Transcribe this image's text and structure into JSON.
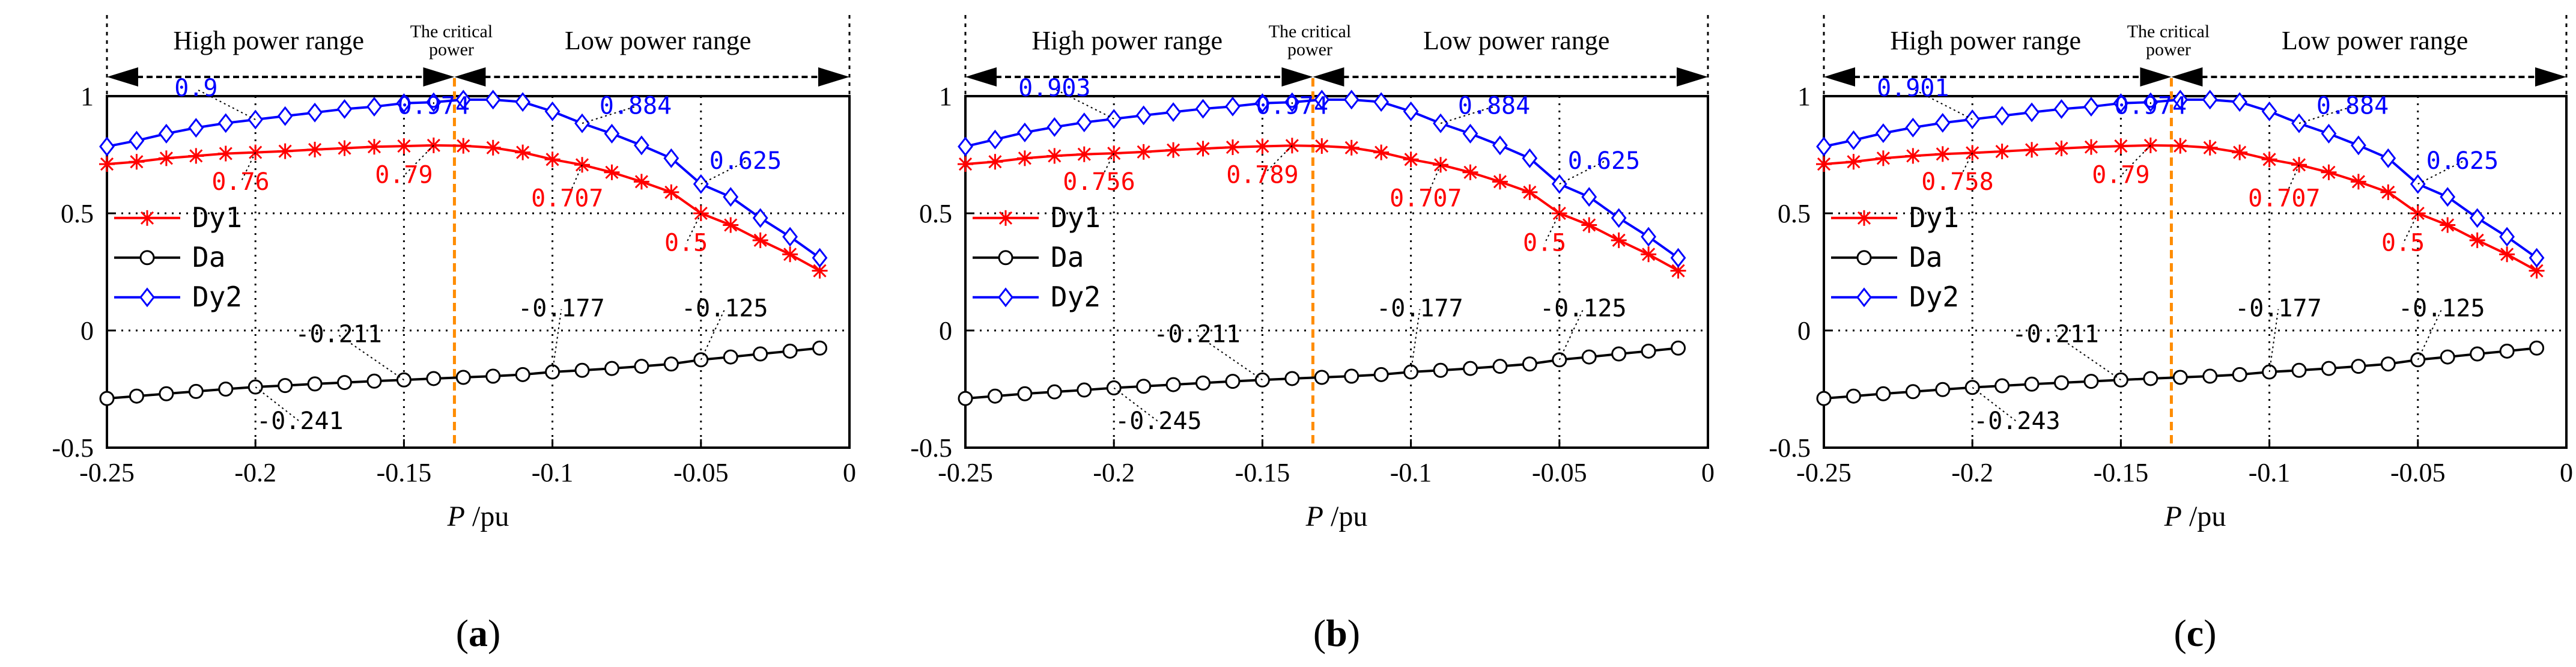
{
  "figure": {
    "panels": [
      "a",
      "b",
      "c"
    ],
    "range_labels": {
      "high": "High power range",
      "critical_line1": "The critical",
      "critical_line2": "power",
      "low": "Low power range"
    },
    "xaxis_label_italic": "P",
    "xaxis_label_unit": " /pu",
    "colors": {
      "Dy1": "#ff0000",
      "Da": "#000000",
      "Dy2": "#0000ff",
      "critical": "#ff8c00"
    }
  },
  "chart_data": [
    {
      "type": "line",
      "panel_label": "a",
      "x": [
        -0.25,
        -0.24,
        -0.23,
        -0.22,
        -0.21,
        -0.2,
        -0.19,
        -0.18,
        -0.17,
        -0.16,
        -0.15,
        -0.14,
        -0.13,
        -0.12,
        -0.11,
        -0.1,
        -0.09,
        -0.08,
        -0.07,
        -0.06,
        -0.05,
        -0.04,
        -0.03,
        -0.02,
        -0.01
      ],
      "series": [
        {
          "name": "Dy1",
          "values": [
            0.71,
            0.72,
            0.735,
            0.745,
            0.755,
            0.76,
            0.765,
            0.772,
            0.778,
            0.784,
            0.787,
            0.79,
            0.788,
            0.78,
            0.76,
            0.73,
            0.707,
            0.675,
            0.635,
            0.59,
            0.5,
            0.45,
            0.385,
            0.325,
            0.255
          ]
        },
        {
          "name": "Da",
          "values": [
            -0.29,
            -0.28,
            -0.27,
            -0.26,
            -0.25,
            -0.241,
            -0.235,
            -0.228,
            -0.222,
            -0.216,
            -0.211,
            -0.205,
            -0.2,
            -0.195,
            -0.188,
            -0.177,
            -0.17,
            -0.162,
            -0.153,
            -0.143,
            -0.125,
            -0.113,
            -0.1,
            -0.088,
            -0.075
          ]
        },
        {
          "name": "Dy2",
          "values": [
            0.785,
            0.81,
            0.84,
            0.865,
            0.885,
            0.9,
            0.915,
            0.93,
            0.945,
            0.955,
            0.97,
            0.974,
            0.985,
            0.985,
            0.975,
            0.935,
            0.884,
            0.84,
            0.79,
            0.735,
            0.625,
            0.57,
            0.48,
            0.4,
            0.31
          ]
        }
      ],
      "labels": [
        {
          "text": "0.9",
          "x": -0.2,
          "y": 0.9,
          "series": "Dy2"
        },
        {
          "text": "0.974",
          "x": -0.14,
          "y": 0.974,
          "series": "Dy2"
        },
        {
          "text": "0.884",
          "x": -0.09,
          "y": 0.884,
          "series": "Dy2"
        },
        {
          "text": "0.625",
          "x": -0.05,
          "y": 0.625,
          "series": "Dy2"
        },
        {
          "text": "0.76",
          "x": -0.2,
          "y": 0.76,
          "series": "Dy1"
        },
        {
          "text": "0.79",
          "x": -0.14,
          "y": 0.79,
          "series": "Dy1"
        },
        {
          "text": "0.707",
          "x": -0.09,
          "y": 0.707,
          "series": "Dy1"
        },
        {
          "text": "0.5",
          "x": -0.05,
          "y": 0.5,
          "series": "Dy1"
        },
        {
          "text": "-0.211",
          "x": -0.15,
          "y": -0.211,
          "series": "Da"
        },
        {
          "text": "-0.177",
          "x": -0.1,
          "y": -0.177,
          "series": "Da"
        },
        {
          "text": "-0.125",
          "x": -0.05,
          "y": -0.125,
          "series": "Da"
        },
        {
          "text": "-0.241",
          "x": -0.2,
          "y": -0.241,
          "series": "Da"
        }
      ],
      "critical_power": -0.133,
      "xlim": [
        -0.25,
        0
      ],
      "ylim": [
        -0.5,
        1
      ],
      "xticks": [
        "-0.25",
        "-0.2",
        "-0.15",
        "-0.1",
        "-0.05",
        "0"
      ],
      "yticks": [
        "-0.5",
        "0",
        "0.5",
        "1"
      ],
      "legend": [
        "Dy1",
        "Da",
        "Dy2"
      ],
      "legend_position": "left"
    },
    {
      "type": "line",
      "panel_label": "b",
      "x": [
        -0.25,
        -0.24,
        -0.23,
        -0.22,
        -0.21,
        -0.2,
        -0.19,
        -0.18,
        -0.17,
        -0.16,
        -0.15,
        -0.14,
        -0.13,
        -0.12,
        -0.11,
        -0.1,
        -0.09,
        -0.08,
        -0.07,
        -0.06,
        -0.05,
        -0.04,
        -0.03,
        -0.02,
        -0.01
      ],
      "series": [
        {
          "name": "Dy1",
          "values": [
            0.71,
            0.72,
            0.735,
            0.745,
            0.752,
            0.756,
            0.762,
            0.77,
            0.776,
            0.782,
            0.786,
            0.789,
            0.787,
            0.78,
            0.76,
            0.73,
            0.707,
            0.675,
            0.635,
            0.59,
            0.5,
            0.45,
            0.385,
            0.325,
            0.255
          ]
        },
        {
          "name": "Da",
          "values": [
            -0.29,
            -0.28,
            -0.27,
            -0.262,
            -0.254,
            -0.245,
            -0.238,
            -0.231,
            -0.224,
            -0.217,
            -0.211,
            -0.205,
            -0.2,
            -0.195,
            -0.188,
            -0.177,
            -0.17,
            -0.162,
            -0.153,
            -0.143,
            -0.125,
            -0.113,
            -0.1,
            -0.088,
            -0.075
          ]
        },
        {
          "name": "Dy2",
          "values": [
            0.785,
            0.815,
            0.845,
            0.868,
            0.888,
            0.903,
            0.918,
            0.932,
            0.946,
            0.956,
            0.97,
            0.974,
            0.985,
            0.985,
            0.975,
            0.935,
            0.884,
            0.84,
            0.79,
            0.735,
            0.625,
            0.57,
            0.48,
            0.4,
            0.31
          ]
        }
      ],
      "labels": [
        {
          "text": "0.903",
          "x": -0.2,
          "y": 0.903,
          "series": "Dy2"
        },
        {
          "text": "0.974",
          "x": -0.14,
          "y": 0.974,
          "series": "Dy2"
        },
        {
          "text": "0.884",
          "x": -0.09,
          "y": 0.884,
          "series": "Dy2"
        },
        {
          "text": "0.625",
          "x": -0.05,
          "y": 0.625,
          "series": "Dy2"
        },
        {
          "text": "0.756",
          "x": -0.2,
          "y": 0.756,
          "series": "Dy1"
        },
        {
          "text": "0.789",
          "x": -0.14,
          "y": 0.789,
          "series": "Dy1"
        },
        {
          "text": "0.707",
          "x": -0.09,
          "y": 0.707,
          "series": "Dy1"
        },
        {
          "text": "0.5",
          "x": -0.05,
          "y": 0.5,
          "series": "Dy1"
        },
        {
          "text": "-0.211",
          "x": -0.15,
          "y": -0.211,
          "series": "Da"
        },
        {
          "text": "-0.177",
          "x": -0.1,
          "y": -0.177,
          "series": "Da"
        },
        {
          "text": "-0.125",
          "x": -0.05,
          "y": -0.125,
          "series": "Da"
        },
        {
          "text": "-0.245",
          "x": -0.2,
          "y": -0.245,
          "series": "Da"
        }
      ],
      "critical_power": -0.133,
      "xlim": [
        -0.25,
        0
      ],
      "ylim": [
        -0.5,
        1
      ],
      "xticks": [
        "-0.25",
        "-0.2",
        "-0.15",
        "-0.1",
        "-0.05",
        "0"
      ],
      "yticks": [
        "-0.5",
        "0",
        "0.5",
        "1"
      ],
      "legend": [
        "Dy1",
        "Da",
        "Dy2"
      ],
      "legend_position": "left"
    },
    {
      "type": "line",
      "panel_label": "c",
      "x": [
        -0.25,
        -0.24,
        -0.23,
        -0.22,
        -0.21,
        -0.2,
        -0.19,
        -0.18,
        -0.17,
        -0.16,
        -0.15,
        -0.14,
        -0.13,
        -0.12,
        -0.11,
        -0.1,
        -0.09,
        -0.08,
        -0.07,
        -0.06,
        -0.05,
        -0.04,
        -0.03,
        -0.02,
        -0.01
      ],
      "series": [
        {
          "name": "Dy1",
          "values": [
            0.71,
            0.72,
            0.735,
            0.745,
            0.753,
            0.758,
            0.764,
            0.771,
            0.777,
            0.783,
            0.787,
            0.79,
            0.788,
            0.78,
            0.76,
            0.73,
            0.707,
            0.675,
            0.635,
            0.59,
            0.5,
            0.45,
            0.385,
            0.325,
            0.255
          ]
        },
        {
          "name": "Da",
          "values": [
            -0.29,
            -0.28,
            -0.27,
            -0.261,
            -0.252,
            -0.243,
            -0.236,
            -0.229,
            -0.223,
            -0.217,
            -0.211,
            -0.205,
            -0.2,
            -0.195,
            -0.188,
            -0.177,
            -0.17,
            -0.162,
            -0.153,
            -0.143,
            -0.125,
            -0.113,
            -0.1,
            -0.088,
            -0.075
          ]
        },
        {
          "name": "Dy2",
          "values": [
            0.785,
            0.812,
            0.842,
            0.866,
            0.886,
            0.901,
            0.916,
            0.931,
            0.945,
            0.955,
            0.97,
            0.974,
            0.985,
            0.985,
            0.975,
            0.935,
            0.884,
            0.84,
            0.79,
            0.735,
            0.625,
            0.57,
            0.48,
            0.4,
            0.31
          ]
        }
      ],
      "labels": [
        {
          "text": "0.901",
          "x": -0.2,
          "y": 0.901,
          "series": "Dy2"
        },
        {
          "text": "0.974",
          "x": -0.14,
          "y": 0.974,
          "series": "Dy2"
        },
        {
          "text": "0.884",
          "x": -0.09,
          "y": 0.884,
          "series": "Dy2"
        },
        {
          "text": "0.625",
          "x": -0.05,
          "y": 0.625,
          "series": "Dy2"
        },
        {
          "text": "0.758",
          "x": -0.2,
          "y": 0.758,
          "series": "Dy1"
        },
        {
          "text": "0.79",
          "x": -0.14,
          "y": 0.79,
          "series": "Dy1"
        },
        {
          "text": "0.707",
          "x": -0.09,
          "y": 0.707,
          "series": "Dy1"
        },
        {
          "text": "0.5",
          "x": -0.05,
          "y": 0.5,
          "series": "Dy1"
        },
        {
          "text": "-0.211",
          "x": -0.15,
          "y": -0.211,
          "series": "Da"
        },
        {
          "text": "-0.177",
          "x": -0.1,
          "y": -0.177,
          "series": "Da"
        },
        {
          "text": "-0.125",
          "x": -0.05,
          "y": -0.125,
          "series": "Da"
        },
        {
          "text": "-0.243",
          "x": -0.2,
          "y": -0.243,
          "series": "Da"
        }
      ],
      "critical_power": -0.133,
      "xlim": [
        -0.25,
        0
      ],
      "ylim": [
        -0.5,
        1
      ],
      "xticks": [
        "-0.25",
        "-0.2",
        "-0.15",
        "-0.1",
        "-0.05",
        "0"
      ],
      "yticks": [
        "-0.5",
        "0",
        "0.5",
        "1"
      ],
      "legend": [
        "Dy1",
        "Da",
        "Dy2"
      ],
      "legend_position": "left"
    }
  ]
}
